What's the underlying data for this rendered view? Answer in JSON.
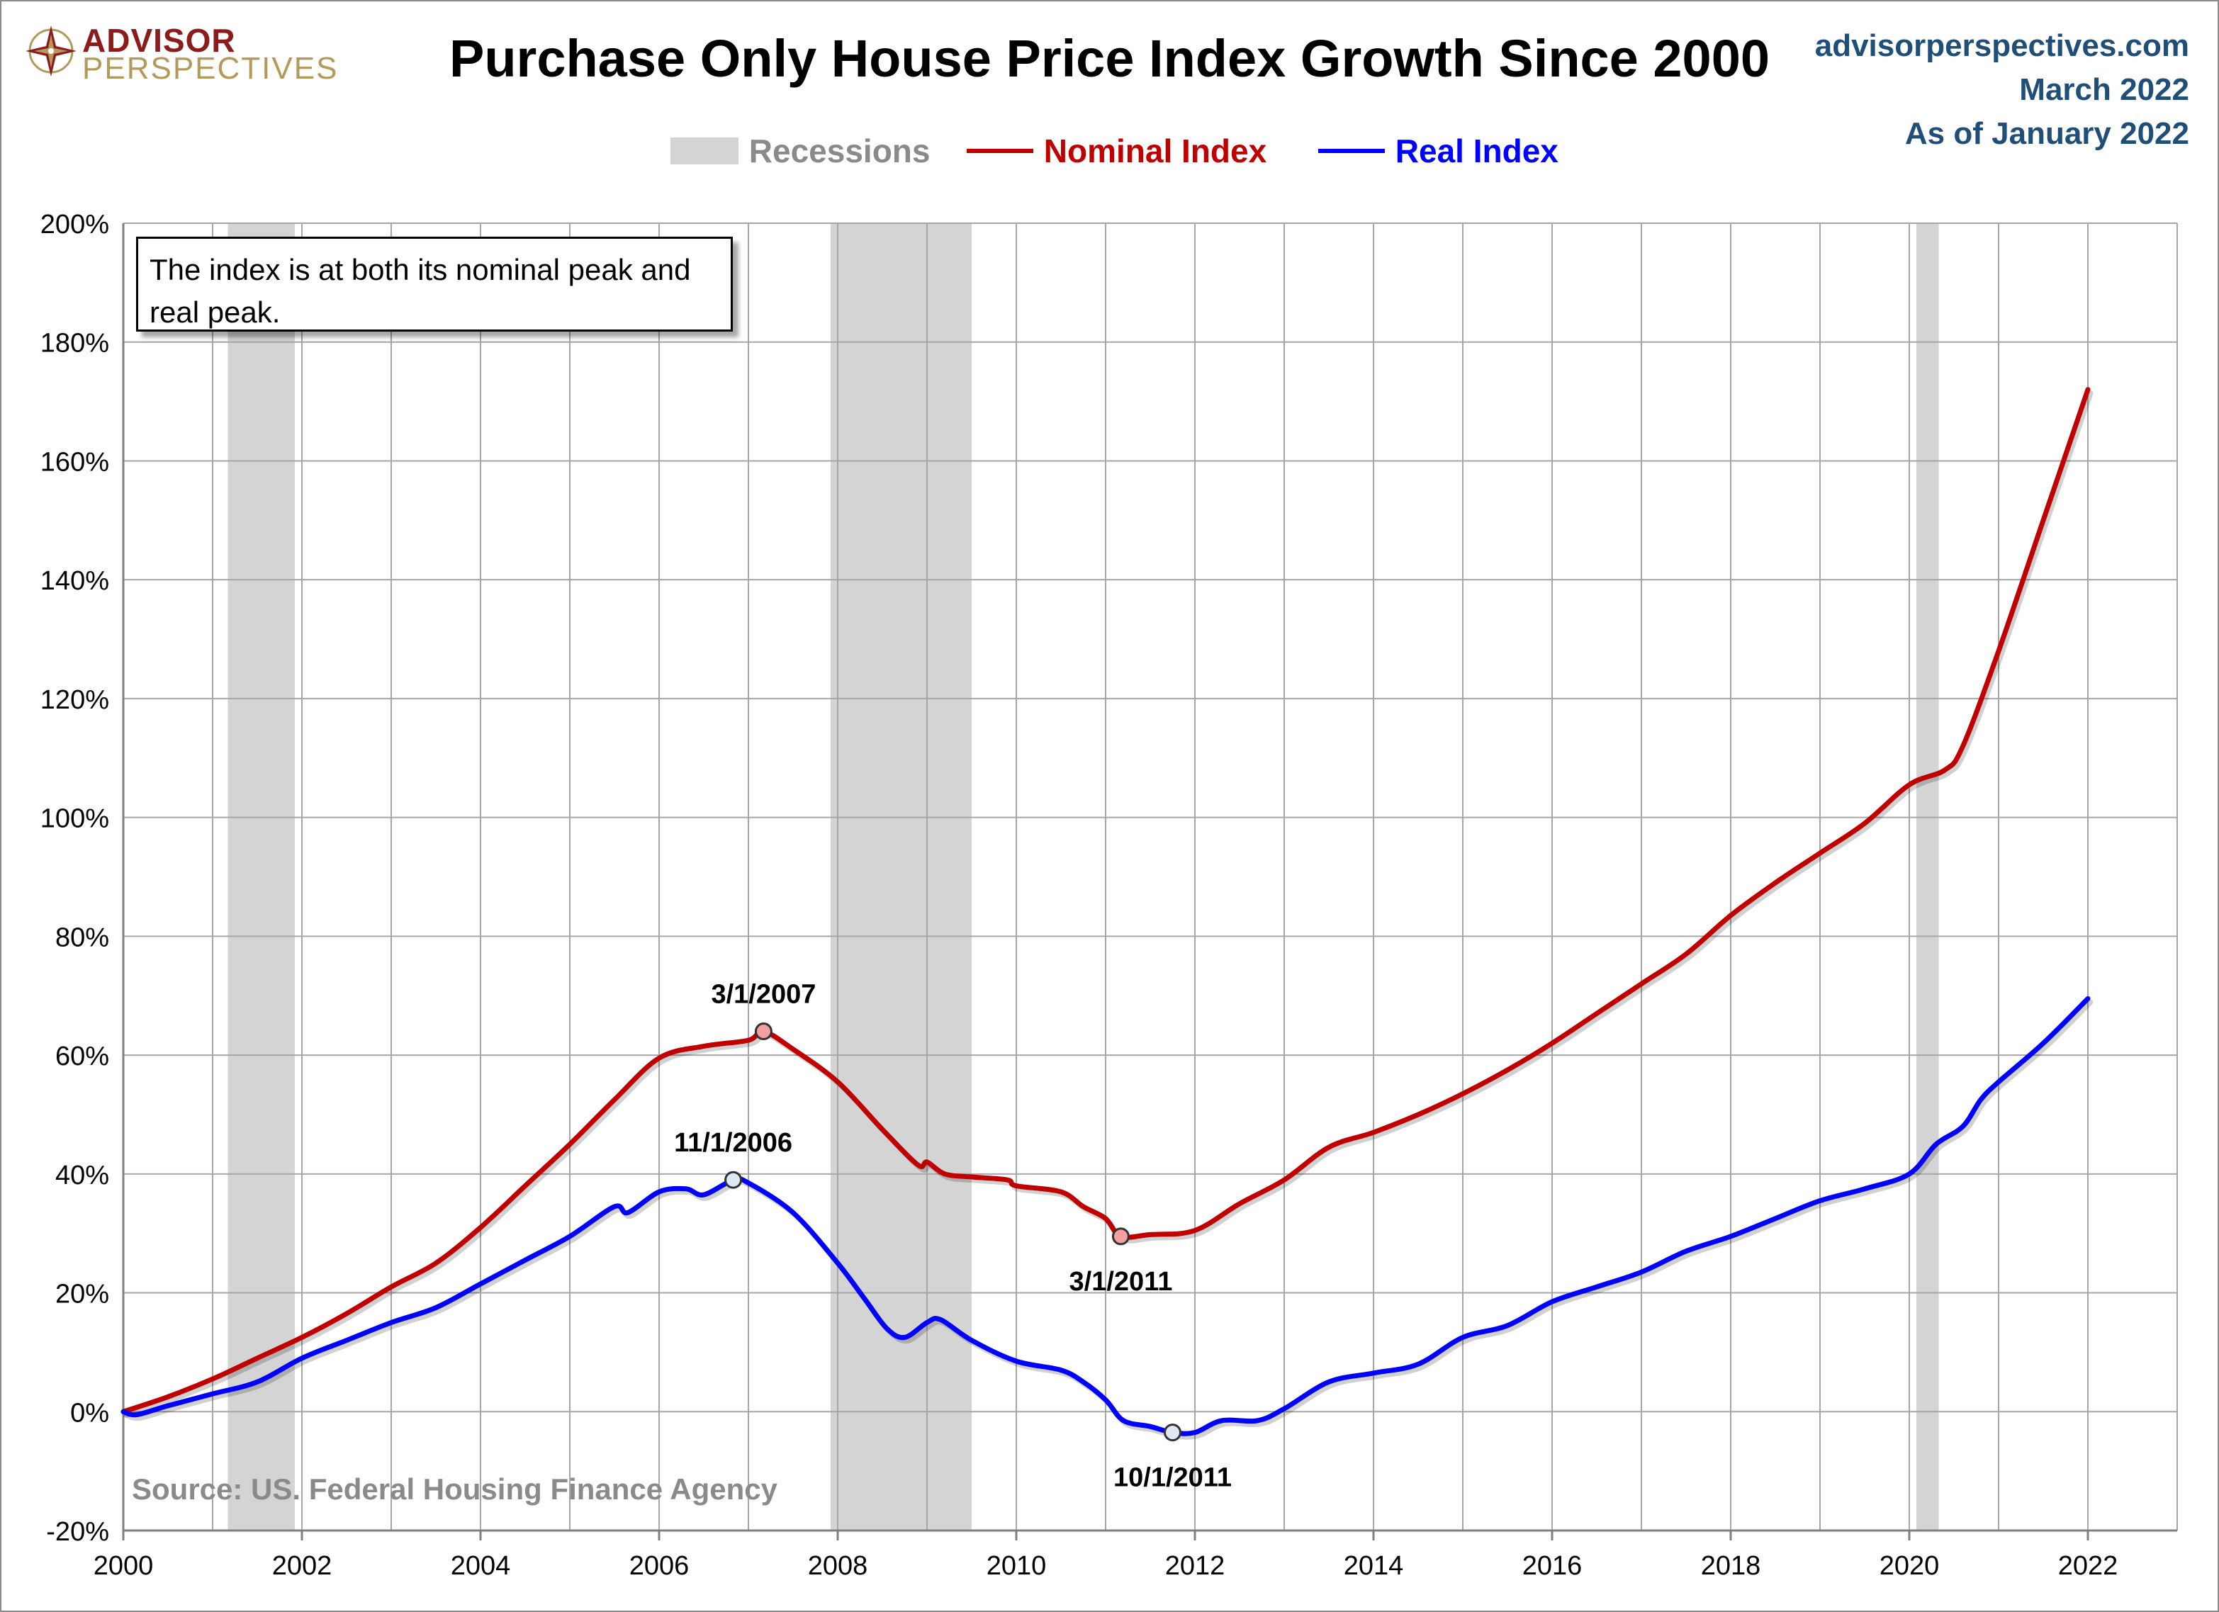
{
  "header": {
    "title": "Purchase Only House Price Index Growth Since 2000",
    "logo_top": "ADVISOR",
    "logo_bottom": "PERSPECTIVES",
    "site": "advisorperspectives.com",
    "date": "March 2022",
    "as_of": "As of January 2022"
  },
  "note": "The index is at both its nominal peak and real peak.",
  "source": "Source: US. Federal Housing Finance Agency",
  "colors": {
    "nominal": "#c00000",
    "real": "#0000ff",
    "recession": "#d4d4d4",
    "grid": "#a6a6a6",
    "nominal_marker": "#f4a0a0",
    "real_marker": "#dde8f4"
  },
  "chart_data": {
    "type": "line",
    "title": "Purchase Only House Price Index Growth Since 2000",
    "xlabel": "",
    "ylabel": "",
    "xlim": [
      2000,
      2023
    ],
    "ylim": [
      -20,
      200
    ],
    "y_ticks": [
      -20,
      0,
      20,
      40,
      60,
      80,
      100,
      120,
      140,
      160,
      180,
      200
    ],
    "y_tick_labels": [
      "-20%",
      "0%",
      "20%",
      "40%",
      "60%",
      "80%",
      "100%",
      "120%",
      "140%",
      "160%",
      "180%",
      "200%"
    ],
    "x_ticks": [
      2000,
      2002,
      2004,
      2006,
      2008,
      2010,
      2012,
      2014,
      2016,
      2018,
      2020,
      2022
    ],
    "x_tick_labels": [
      "2000",
      "2002",
      "2004",
      "2006",
      "2008",
      "2010",
      "2012",
      "2014",
      "2016",
      "2018",
      "2020",
      "2022"
    ],
    "grid": true,
    "legend": {
      "placement": "top-center",
      "entries": [
        "Recessions",
        "Nominal Index",
        "Real Index"
      ]
    },
    "recessions": [
      {
        "start": 2001.17,
        "end": 2001.92
      },
      {
        "start": 2007.92,
        "end": 2009.5
      },
      {
        "start": 2020.08,
        "end": 2020.33
      }
    ],
    "series": [
      {
        "name": "Nominal Index",
        "color": "#c00000",
        "points": [
          [
            2000.0,
            0
          ],
          [
            2000.5,
            2.5
          ],
          [
            2001.0,
            5.5
          ],
          [
            2001.5,
            9
          ],
          [
            2002.0,
            12.5
          ],
          [
            2002.5,
            16.5
          ],
          [
            2003.0,
            21
          ],
          [
            2003.5,
            25
          ],
          [
            2004.0,
            31
          ],
          [
            2004.5,
            38
          ],
          [
            2005.0,
            45
          ],
          [
            2005.5,
            52.5
          ],
          [
            2006.0,
            59.5
          ],
          [
            2006.5,
            61.5
          ],
          [
            2007.0,
            62.5
          ],
          [
            2007.17,
            64
          ],
          [
            2007.5,
            61
          ],
          [
            2008.0,
            55.5
          ],
          [
            2008.5,
            47.5
          ],
          [
            2008.9,
            41.5
          ],
          [
            2009.0,
            42
          ],
          [
            2009.2,
            40
          ],
          [
            2009.5,
            39.5
          ],
          [
            2009.9,
            39
          ],
          [
            2010.0,
            38
          ],
          [
            2010.5,
            37
          ],
          [
            2010.75,
            34.5
          ],
          [
            2011.0,
            32.5
          ],
          [
            2011.17,
            29.5
          ],
          [
            2011.5,
            29.8
          ],
          [
            2012.0,
            30.5
          ],
          [
            2012.5,
            35
          ],
          [
            2013.0,
            39
          ],
          [
            2013.5,
            44.5
          ],
          [
            2014.0,
            47
          ],
          [
            2014.5,
            50
          ],
          [
            2015.0,
            53.5
          ],
          [
            2015.5,
            57.5
          ],
          [
            2016.0,
            62
          ],
          [
            2016.5,
            67
          ],
          [
            2017.0,
            72
          ],
          [
            2017.5,
            77
          ],
          [
            2018.0,
            83.5
          ],
          [
            2018.5,
            89
          ],
          [
            2019.0,
            94
          ],
          [
            2019.5,
            99
          ],
          [
            2020.0,
            105.5
          ],
          [
            2020.4,
            108
          ],
          [
            2020.6,
            112
          ],
          [
            2021.0,
            128
          ],
          [
            2021.5,
            150
          ],
          [
            2022.0,
            172
          ]
        ]
      },
      {
        "name": "Real Index",
        "color": "#0000ff",
        "points": [
          [
            2000.0,
            0
          ],
          [
            2000.15,
            -0.5
          ],
          [
            2000.5,
            1
          ],
          [
            2001.0,
            3
          ],
          [
            2001.5,
            5
          ],
          [
            2002.0,
            9
          ],
          [
            2002.5,
            12
          ],
          [
            2003.0,
            15
          ],
          [
            2003.5,
            17.5
          ],
          [
            2004.0,
            21.5
          ],
          [
            2004.5,
            25.5
          ],
          [
            2005.0,
            29.5
          ],
          [
            2005.5,
            34.5
          ],
          [
            2005.65,
            33.5
          ],
          [
            2006.0,
            37
          ],
          [
            2006.3,
            37.5
          ],
          [
            2006.5,
            36.5
          ],
          [
            2006.83,
            39
          ],
          [
            2007.0,
            38.5
          ],
          [
            2007.5,
            33.5
          ],
          [
            2008.0,
            25
          ],
          [
            2008.3,
            19
          ],
          [
            2008.55,
            14
          ],
          [
            2008.75,
            12.5
          ],
          [
            2009.0,
            15
          ],
          [
            2009.15,
            15.5
          ],
          [
            2009.5,
            12
          ],
          [
            2010.0,
            8.5
          ],
          [
            2010.5,
            7
          ],
          [
            2010.75,
            5
          ],
          [
            2011.0,
            2
          ],
          [
            2011.2,
            -1.5
          ],
          [
            2011.5,
            -2.5
          ],
          [
            2011.75,
            -3.5
          ],
          [
            2012.0,
            -3.5
          ],
          [
            2012.3,
            -1.5
          ],
          [
            2012.7,
            -1.5
          ],
          [
            2013.0,
            0.5
          ],
          [
            2013.5,
            5
          ],
          [
            2014.0,
            6.5
          ],
          [
            2014.5,
            8
          ],
          [
            2015.0,
            12.5
          ],
          [
            2015.5,
            14.5
          ],
          [
            2016.0,
            18.5
          ],
          [
            2016.5,
            21
          ],
          [
            2017.0,
            23.5
          ],
          [
            2017.5,
            27
          ],
          [
            2018.0,
            29.5
          ],
          [
            2018.5,
            32.5
          ],
          [
            2019.0,
            35.5
          ],
          [
            2019.5,
            37.5
          ],
          [
            2020.0,
            40
          ],
          [
            2020.3,
            45
          ],
          [
            2020.6,
            48
          ],
          [
            2020.8,
            52.5
          ],
          [
            2021.0,
            55.5
          ],
          [
            2021.5,
            62
          ],
          [
            2022.0,
            69.5
          ]
        ]
      }
    ],
    "annotations": [
      {
        "series": "Nominal Index",
        "x": 2007.17,
        "y": 64,
        "label": "3/1/2007",
        "position": "above"
      },
      {
        "series": "Real Index",
        "x": 2006.83,
        "y": 39,
        "label": "11/1/2006",
        "position": "above"
      },
      {
        "series": "Nominal Index",
        "x": 2011.17,
        "y": 29.5,
        "label": "3/1/2011",
        "position": "below"
      },
      {
        "series": "Real Index",
        "x": 2011.75,
        "y": -3.5,
        "label": "10/1/2011",
        "position": "below"
      }
    ]
  }
}
